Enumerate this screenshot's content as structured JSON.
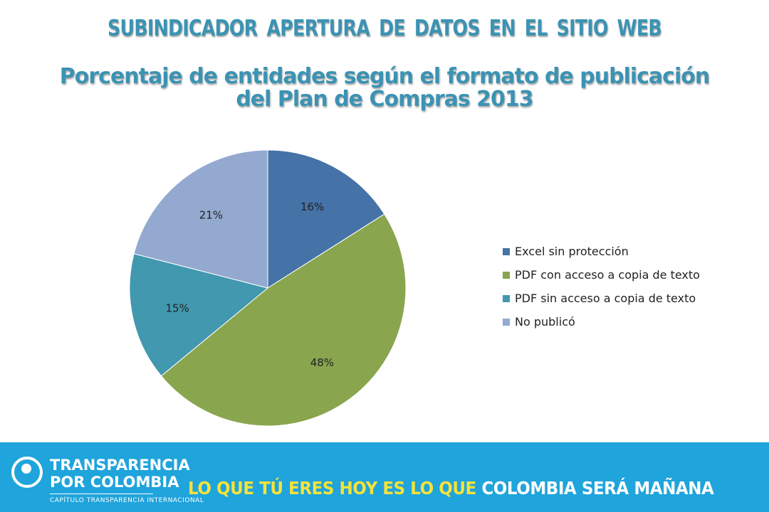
{
  "chart_data": {
    "type": "pie",
    "title": "SUBINDICADOR APERTURA DE DATOS EN EL SITIO WEB",
    "subtitle": "Porcentaje de entidades según el formato de publicación del Plan de Compras 2013",
    "categories": [
      "Excel sin protección",
      "PDF con acceso a copia de texto",
      "PDF sin acceso a copia de texto",
      "No publicó"
    ],
    "values": [
      16,
      48,
      15,
      21
    ],
    "labels": [
      "16%",
      "48%",
      "15%",
      "21%"
    ],
    "colors": [
      "#4572a7",
      "#89a54e",
      "#4198af",
      "#93a9cf"
    ],
    "start_angle": "12 o'clock, clockwise",
    "legend": "right"
  },
  "footer": {
    "logo_line1": "TRANSPARENCIA",
    "logo_line2": "POR COLOMBIA",
    "logo_sub": "CAPÍTULO TRANSPARENCIA INTERNACIONAL",
    "slogan_part1": "LO QUE TÚ ERES HOY ES LO QUE ",
    "slogan_part2": "COLOMBIA SERÁ MAÑANA"
  },
  "icons": {
    "logo": "transparencia-por-colombia-logo"
  }
}
